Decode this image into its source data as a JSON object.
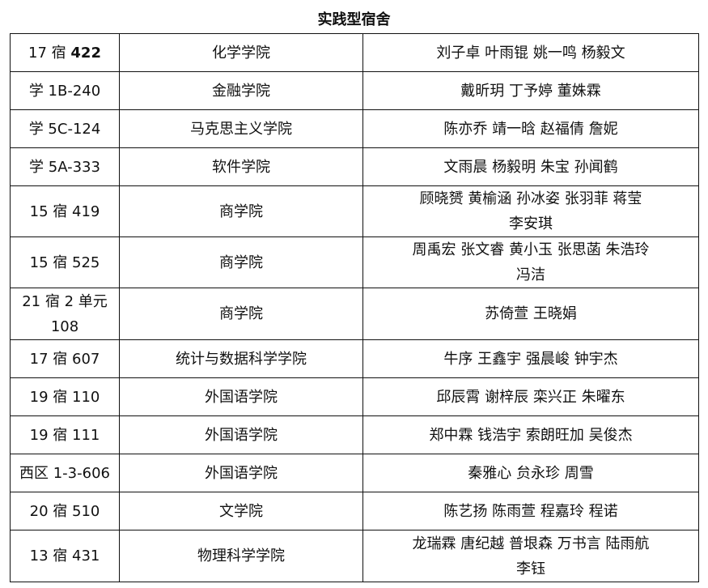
{
  "title": "实践型宿舍",
  "rows": [
    {
      "room_prefix": "17 宿 ",
      "room_bold": "422",
      "college": "化学学院",
      "members": "刘子卓  叶雨锟  姚一鸣  杨毅文"
    },
    {
      "room": "学 1B-240",
      "college": "金融学院",
      "members": "戴昕玥  丁予婷  董姝霖"
    },
    {
      "room": "学 5C-124",
      "college": "马克思主义学院",
      "members": "陈亦乔  靖一晗  赵福倩  詹妮"
    },
    {
      "room": "学 5A-333",
      "college": "软件学院",
      "members": "文雨晨  杨毅明  朱宝  孙闻鹤"
    },
    {
      "room": "15 宿 419",
      "college": "商学院",
      "members": "顾晓赟  黄榆涵  孙冰姿  张羽菲  蒋莹",
      "members2": "李安琪"
    },
    {
      "room": "15 宿 525",
      "college": "商学院",
      "members": "周禹宏  张文睿  黄小玉  张思菡  朱浩玲",
      "members2": "冯洁"
    },
    {
      "room": "21 宿 2 单元",
      "room2": "108",
      "college": "商学院",
      "members": "苏倚萱  王晓娟"
    },
    {
      "room": "17 宿 607",
      "college": "统计与数据科学学院",
      "members": "牛序  王鑫宇  强晨峻  钟宇杰"
    },
    {
      "room": "19 宿 110",
      "college": "外国语学院",
      "members": "邱辰霄  谢梓辰  栾兴正  朱曜东"
    },
    {
      "room": "19 宿 111",
      "college": "外国语学院",
      "members": "郑中霖  钱浩宇  索朗旺加  吴俊杰"
    },
    {
      "room": "西区 1-3-606",
      "college": "外国语学院",
      "members": "秦雅心  贠永珍  周雪"
    },
    {
      "room": "20 宿 510",
      "college": "文学院",
      "members": "陈艺扬  陈雨萱  程嘉玲  程诺"
    },
    {
      "room": "13 宿 431",
      "college": "物理科学学院",
      "members": "龙瑞霖  唐纪越  普垠森  万书言  陆雨航",
      "members2": "李钰"
    }
  ]
}
